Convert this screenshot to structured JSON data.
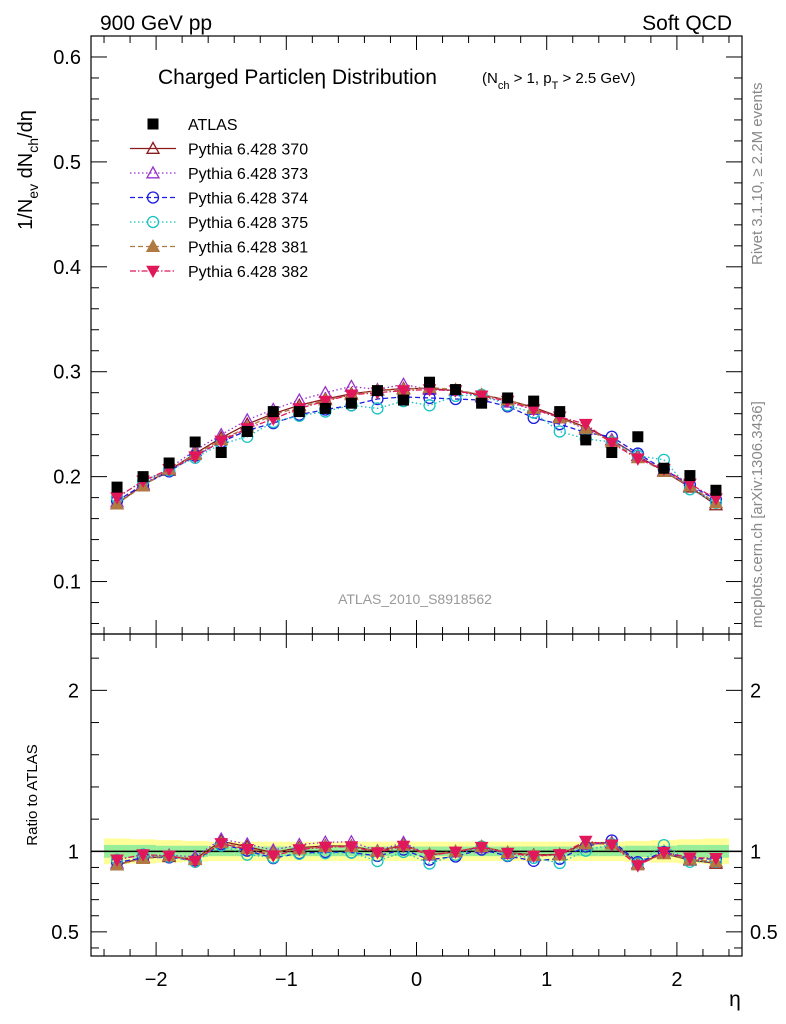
{
  "header": {
    "left": "900 GeV pp",
    "right": "Soft QCD"
  },
  "side_labels": {
    "rivet": "Rivet 3.1.10, ≥ 2.2M events",
    "mcplots": "mcplots.cern.ch [arXiv:1306.3436]"
  },
  "watermark": "ATLAS_2010_S8918562",
  "chart_data": {
    "type": "scatter",
    "title_main": "Charged Particleη Distribution",
    "title_cut": "(N_ch > 1, p_T > 2.5 GeV)",
    "xlabel": "η",
    "ylabel": "1/N_ev dN_ch/dη",
    "ratio_ylabel": "Ratio to ATLAS",
    "xlim": [
      -2.5,
      2.5
    ],
    "ylim": [
      0.05,
      0.62
    ],
    "ratio_ylim": [
      0.35,
      2.35
    ],
    "x_ticks": [
      -2,
      -1,
      0,
      1,
      2
    ],
    "x_tick_labels": [
      "−2",
      "−1",
      "0",
      "1",
      "2"
    ],
    "y_ticks": [
      0.1,
      0.2,
      0.3,
      0.4,
      0.5,
      0.6
    ],
    "y_tick_labels": [
      "0.1",
      "0.2",
      "0.3",
      "0.4",
      "0.5",
      "0.6"
    ],
    "ratio_ticks": [
      0.5,
      1,
      2
    ],
    "ratio_tick_labels": [
      "0.5",
      "1",
      "2"
    ],
    "legend_position": "top-left",
    "x": [
      -2.3,
      -2.1,
      -1.9,
      -1.7,
      -1.5,
      -1.3,
      -1.1,
      -0.9,
      -0.7,
      -0.5,
      -0.3,
      -0.1,
      0.1,
      0.3,
      0.5,
      0.7,
      0.9,
      1.1,
      1.3,
      1.5,
      1.7,
      1.9,
      2.1,
      2.3
    ],
    "data": {
      "name": "ATLAS",
      "values": [
        0.19,
        0.2,
        0.213,
        0.233,
        0.223,
        0.243,
        0.262,
        0.262,
        0.265,
        0.27,
        0.282,
        0.273,
        0.29,
        0.283,
        0.27,
        0.275,
        0.272,
        0.262,
        0.235,
        0.223,
        0.238,
        0.208,
        0.201,
        0.187
      ],
      "band_inner": [
        0.04,
        0.04,
        0.035,
        0.035,
        0.03,
        0.03,
        0.03,
        0.03,
        0.03,
        0.03,
        0.03,
        0.03,
        0.03,
        0.03,
        0.03,
        0.03,
        0.03,
        0.03,
        0.03,
        0.03,
        0.035,
        0.035,
        0.04,
        0.04
      ],
      "band_outer": [
        0.08,
        0.075,
        0.07,
        0.065,
        0.06,
        0.06,
        0.06,
        0.06,
        0.06,
        0.06,
        0.06,
        0.06,
        0.06,
        0.06,
        0.06,
        0.06,
        0.06,
        0.06,
        0.06,
        0.06,
        0.065,
        0.07,
        0.075,
        0.08
      ],
      "color": "#000000"
    },
    "series": [
      {
        "name": "Pythia 6.428 370",
        "color": "#8b1a1a",
        "marker": "triangle-open",
        "dash": "",
        "values": [
          0.174,
          0.192,
          0.206,
          0.222,
          0.237,
          0.25,
          0.26,
          0.268,
          0.274,
          0.279,
          0.282,
          0.284,
          0.284,
          0.282,
          0.278,
          0.273,
          0.266,
          0.257,
          0.247,
          0.235,
          0.22,
          0.205,
          0.19,
          0.173
        ]
      },
      {
        "name": "Pythia 6.428 373",
        "color": "#9932cc",
        "marker": "triangle-open",
        "dash": "1.5,2.5",
        "values": [
          0.176,
          0.193,
          0.208,
          0.225,
          0.24,
          0.254,
          0.264,
          0.273,
          0.28,
          0.286,
          0.283,
          0.288,
          0.283,
          0.282,
          0.276,
          0.271,
          0.264,
          0.256,
          0.245,
          0.235,
          0.22,
          0.206,
          0.191,
          0.175
        ]
      },
      {
        "name": "Pythia 6.428 374",
        "color": "#1e1ee0",
        "marker": "circle-open",
        "dash": "5,3",
        "values": [
          0.177,
          0.192,
          0.205,
          0.22,
          0.233,
          0.244,
          0.251,
          0.259,
          0.264,
          0.268,
          0.274,
          0.276,
          0.275,
          0.274,
          0.273,
          0.267,
          0.256,
          0.25,
          0.242,
          0.238,
          0.222,
          0.207,
          0.192,
          0.178
        ]
      },
      {
        "name": "Pythia 6.428 375",
        "color": "#17c2c2",
        "marker": "circle-open",
        "dash": "1.5,2.5",
        "values": [
          0.18,
          0.196,
          0.206,
          0.218,
          0.231,
          0.238,
          0.252,
          0.258,
          0.262,
          0.268,
          0.265,
          0.272,
          0.268,
          0.277,
          0.278,
          0.268,
          0.261,
          0.243,
          0.236,
          0.233,
          0.22,
          0.216,
          0.188,
          0.175
        ]
      },
      {
        "name": "Pythia 6.428 381",
        "color": "#b07a43",
        "marker": "triangle-filled",
        "dash": "5,3",
        "values": [
          0.174,
          0.191,
          0.207,
          0.221,
          0.235,
          0.247,
          0.259,
          0.266,
          0.273,
          0.278,
          0.282,
          0.283,
          0.285,
          0.283,
          0.278,
          0.273,
          0.265,
          0.256,
          0.246,
          0.233,
          0.218,
          0.205,
          0.191,
          0.175
        ]
      },
      {
        "name": "Pythia 6.428 382",
        "color": "#e0185a",
        "marker": "triangle-down-filled",
        "dash": "6,2,1.5,2",
        "values": [
          0.18,
          0.196,
          0.207,
          0.219,
          0.234,
          0.246,
          0.255,
          0.265,
          0.272,
          0.278,
          0.28,
          0.282,
          0.283,
          0.282,
          0.277,
          0.272,
          0.264,
          0.257,
          0.25,
          0.232,
          0.217,
          0.207,
          0.193,
          0.179
        ]
      }
    ]
  }
}
